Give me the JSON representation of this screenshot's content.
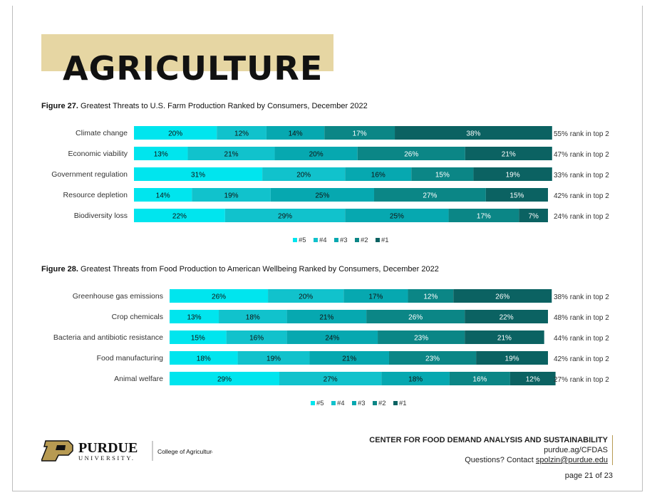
{
  "section_title": "AGRICULTURE",
  "colors": {
    "r5": "#00e5ee",
    "r4": "#11c2cc",
    "r3": "#06a8b0",
    "r2": "#0b8686",
    "r1": "#0b6262",
    "accent_band": "#e6d6a3"
  },
  "legend": [
    {
      "label": "#5",
      "color": "#00e5ee"
    },
    {
      "label": "#4",
      "color": "#11c2cc"
    },
    {
      "label": "#3",
      "color": "#06a8b0"
    },
    {
      "label": "#2",
      "color": "#0b8686"
    },
    {
      "label": "#1",
      "color": "#0b6262"
    }
  ],
  "chart_data": [
    {
      "type": "bar",
      "orientation": "horizontal-stacked-100",
      "title_prefix": "Figure 27.",
      "title": "Greatest Threats to U.S. Farm Production Ranked by Consumers, December 2022",
      "categories": [
        "Climate change",
        "Economic viability",
        "Government regulation",
        "Resource depletion",
        "Biodiversity loss"
      ],
      "series": [
        {
          "name": "#5",
          "values": [
            20,
            13,
            31,
            14,
            22
          ]
        },
        {
          "name": "#4",
          "values": [
            12,
            21,
            20,
            19,
            29
          ]
        },
        {
          "name": "#3",
          "values": [
            14,
            20,
            16,
            25,
            25
          ]
        },
        {
          "name": "#2",
          "values": [
            17,
            26,
            15,
            27,
            17
          ]
        },
        {
          "name": "#1",
          "values": [
            38,
            21,
            19,
            15,
            7
          ]
        }
      ],
      "right_labels": [
        "55% rank in top 2",
        "47% rank in top 2",
        "33% rank in top 2",
        "42% rank in top 2",
        "24% rank in top 2"
      ],
      "legend_position": "bottom"
    },
    {
      "type": "bar",
      "orientation": "horizontal-stacked-100",
      "title_prefix": "Figure 28.",
      "title": "Greatest Threats from Food Production to American Wellbeing Ranked by Consumers, December 2022",
      "categories": [
        "Greenhouse gas emissions",
        "Crop chemicals",
        "Bacteria and antibiotic resistance",
        "Food manufacturing",
        "Animal welfare"
      ],
      "series": [
        {
          "name": "#5",
          "values": [
            26,
            13,
            15,
            18,
            29
          ]
        },
        {
          "name": "#4",
          "values": [
            20,
            18,
            16,
            19,
            27
          ]
        },
        {
          "name": "#3",
          "values": [
            17,
            21,
            24,
            21,
            18
          ]
        },
        {
          "name": "#2",
          "values": [
            12,
            26,
            23,
            23,
            16
          ]
        },
        {
          "name": "#1",
          "values": [
            26,
            22,
            21,
            19,
            12
          ]
        }
      ],
      "right_labels": [
        "38% rank in top 2",
        "48% rank in top 2",
        "44% rank in top 2",
        "42% rank in top 2",
        "27% rank in top 2"
      ],
      "legend_position": "bottom"
    }
  ],
  "footer": {
    "logo_name": "PURDUE",
    "logo_sub": "UNIVERSITY.",
    "college": "College of Agriculture",
    "center": "CENTER FOR FOOD DEMAND ANALYSIS AND SUSTAINABILITY",
    "url": "purdue.ag/CFDAS",
    "contact_prefix": "Questions? Contact ",
    "contact_email": "spolzin@purdue.edu",
    "page": "page 21 of 23"
  }
}
